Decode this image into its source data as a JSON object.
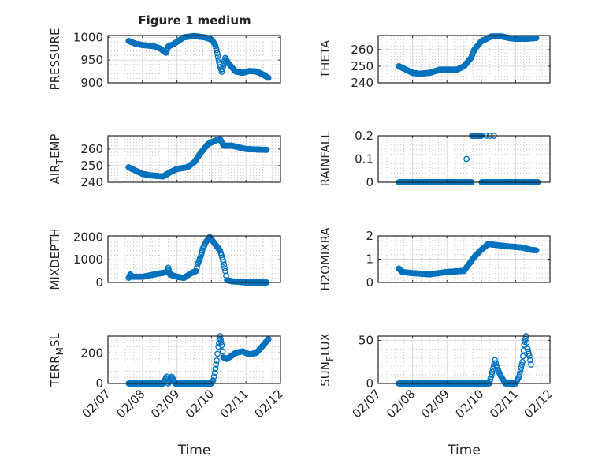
{
  "chart_data": {
    "type": "scatter",
    "title": "Figure 1 medium",
    "xlabel": "Time",
    "x_unit": "day of February",
    "xlim": [
      7,
      12
    ],
    "xticks": [
      7,
      8,
      9,
      10,
      11,
      12
    ],
    "xtick_labels": [
      "02/07",
      "02/08",
      "02/09",
      "02/10",
      "02/11",
      "02/12"
    ],
    "grid": "major and minor",
    "marker": "circle-open",
    "color": "#0072BD",
    "panels": [
      {
        "ylabel": "PRESSURE",
        "ylim": [
          900,
          1004
        ],
        "yticks": [
          900,
          950,
          1000
        ],
        "keypoints": [
          [
            7.6,
            992
          ],
          [
            7.8,
            986
          ],
          [
            8.0,
            983
          ],
          [
            8.3,
            981
          ],
          [
            8.5,
            976
          ],
          [
            8.68,
            966
          ],
          [
            8.75,
            980
          ],
          [
            8.9,
            985
          ],
          [
            9.0,
            990
          ],
          [
            9.2,
            1000
          ],
          [
            9.5,
            1003
          ],
          [
            9.8,
            1000
          ],
          [
            10.0,
            995
          ],
          [
            10.1,
            985
          ],
          [
            10.15,
            972
          ],
          [
            10.22,
            945
          ],
          [
            10.3,
            924
          ],
          [
            10.4,
            955
          ],
          [
            10.5,
            942
          ],
          [
            10.7,
            925
          ],
          [
            10.9,
            922
          ],
          [
            11.1,
            926
          ],
          [
            11.3,
            925
          ],
          [
            11.5,
            918
          ],
          [
            11.65,
            911
          ]
        ]
      },
      {
        "ylabel": "THETA",
        "ylim": [
          240,
          268.5
        ],
        "yticks": [
          240,
          250,
          260
        ],
        "keypoints": [
          [
            7.6,
            250
          ],
          [
            7.8,
            248
          ],
          [
            8.0,
            246
          ],
          [
            8.2,
            245.5
          ],
          [
            8.5,
            246
          ],
          [
            8.8,
            248
          ],
          [
            9.0,
            248
          ],
          [
            9.3,
            248
          ],
          [
            9.5,
            250
          ],
          [
            9.7,
            255
          ],
          [
            9.8,
            260
          ],
          [
            10.0,
            265
          ],
          [
            10.3,
            268
          ],
          [
            10.6,
            268
          ],
          [
            10.8,
            267
          ],
          [
            11.0,
            266.5
          ],
          [
            11.3,
            266.5
          ],
          [
            11.6,
            267
          ]
        ]
      },
      {
        "ylabel": "AIR_TEMP",
        "ylim": [
          240,
          268
        ],
        "yticks": [
          240,
          250,
          260
        ],
        "keypoints": [
          [
            7.6,
            249
          ],
          [
            7.8,
            247
          ],
          [
            8.0,
            245
          ],
          [
            8.3,
            244
          ],
          [
            8.6,
            243.5
          ],
          [
            8.8,
            246
          ],
          [
            9.0,
            248
          ],
          [
            9.3,
            249
          ],
          [
            9.5,
            252
          ],
          [
            9.7,
            258
          ],
          [
            9.9,
            263
          ],
          [
            10.1,
            265
          ],
          [
            10.25,
            266
          ],
          [
            10.35,
            262
          ],
          [
            10.6,
            262
          ],
          [
            11.0,
            260
          ],
          [
            11.6,
            259.5
          ]
        ]
      },
      {
        "ylabel": "RAINFALL",
        "ylim": [
          0,
          0.2
        ],
        "yticks": [
          0,
          0.1,
          0.2
        ],
        "keypoints": [
          [
            7.6,
            0
          ],
          [
            9.56,
            0
          ],
          [
            9.57,
            0.1
          ],
          [
            9.58,
            0
          ],
          [
            9.72,
            0
          ],
          [
            9.73,
            0.2
          ],
          [
            10.0,
            0.2
          ],
          [
            10.01,
            0
          ],
          [
            10.14,
            0
          ],
          [
            10.15,
            0.2
          ],
          [
            10.16,
            0
          ],
          [
            10.24,
            0
          ],
          [
            10.25,
            0.2
          ],
          [
            10.26,
            0
          ],
          [
            10.36,
            0
          ],
          [
            10.37,
            0.2
          ],
          [
            10.38,
            0
          ],
          [
            11.65,
            0
          ]
        ]
      },
      {
        "ylabel": "MIXDEPTH",
        "ylim": [
          0,
          2050
        ],
        "yticks": [
          0,
          1000,
          2000
        ],
        "keypoints": [
          [
            7.6,
            200
          ],
          [
            7.65,
            350
          ],
          [
            7.7,
            250
          ],
          [
            8.0,
            250
          ],
          [
            8.5,
            400
          ],
          [
            8.7,
            450
          ],
          [
            8.75,
            650
          ],
          [
            8.8,
            350
          ],
          [
            9.0,
            250
          ],
          [
            9.2,
            200
          ],
          [
            9.4,
            400
          ],
          [
            9.55,
            500
          ],
          [
            9.6,
            800
          ],
          [
            9.7,
            1200
          ],
          [
            9.75,
            1500
          ],
          [
            9.85,
            1800
          ],
          [
            9.95,
            2000
          ],
          [
            10.05,
            1800
          ],
          [
            10.15,
            1600
          ],
          [
            10.25,
            1400
          ],
          [
            10.35,
            900
          ],
          [
            10.4,
            500
          ],
          [
            10.45,
            100
          ],
          [
            10.6,
            50
          ],
          [
            11.0,
            0
          ],
          [
            11.6,
            0
          ]
        ]
      },
      {
        "ylabel": "H2OMIXRA",
        "ylim": [
          0,
          2
        ],
        "yticks": [
          0,
          1,
          2
        ],
        "keypoints": [
          [
            7.6,
            0.6
          ],
          [
            7.7,
            0.45
          ],
          [
            8.0,
            0.4
          ],
          [
            8.5,
            0.35
          ],
          [
            9.0,
            0.45
          ],
          [
            9.5,
            0.5
          ],
          [
            9.6,
            0.7
          ],
          [
            9.8,
            1.1
          ],
          [
            10.0,
            1.4
          ],
          [
            10.2,
            1.65
          ],
          [
            10.5,
            1.6
          ],
          [
            10.8,
            1.55
          ],
          [
            11.2,
            1.5
          ],
          [
            11.45,
            1.4
          ],
          [
            11.6,
            1.38
          ]
        ]
      },
      {
        "ylabel": "TERR_MSL",
        "ylim": [
          0,
          310
        ],
        "yticks": [
          0,
          200
        ],
        "keypoints": [
          [
            7.6,
            0
          ],
          [
            8.6,
            0
          ],
          [
            8.7,
            45
          ],
          [
            8.75,
            0
          ],
          [
            8.85,
            45
          ],
          [
            8.95,
            0
          ],
          [
            10.0,
            0
          ],
          [
            10.05,
            20
          ],
          [
            10.1,
            70
          ],
          [
            10.15,
            150
          ],
          [
            10.2,
            240
          ],
          [
            10.25,
            310
          ],
          [
            10.3,
            250
          ],
          [
            10.35,
            170
          ],
          [
            10.45,
            160
          ],
          [
            10.7,
            200
          ],
          [
            10.9,
            210
          ],
          [
            11.1,
            190
          ],
          [
            11.3,
            200
          ],
          [
            11.5,
            250
          ],
          [
            11.65,
            290
          ]
        ]
      },
      {
        "ylabel": "SUN_FLUX",
        "ylim": [
          0,
          55
        ],
        "yticks": [
          0,
          50
        ],
        "keypoints": [
          [
            7.6,
            0
          ],
          [
            10.23,
            0
          ],
          [
            10.3,
            10
          ],
          [
            10.4,
            27
          ],
          [
            10.45,
            20
          ],
          [
            10.55,
            10
          ],
          [
            10.7,
            0
          ],
          [
            11.0,
            0
          ],
          [
            11.1,
            8
          ],
          [
            11.2,
            25
          ],
          [
            11.25,
            45
          ],
          [
            11.3,
            55
          ],
          [
            11.35,
            40
          ],
          [
            11.4,
            32
          ],
          [
            11.45,
            22
          ]
        ]
      }
    ]
  }
}
